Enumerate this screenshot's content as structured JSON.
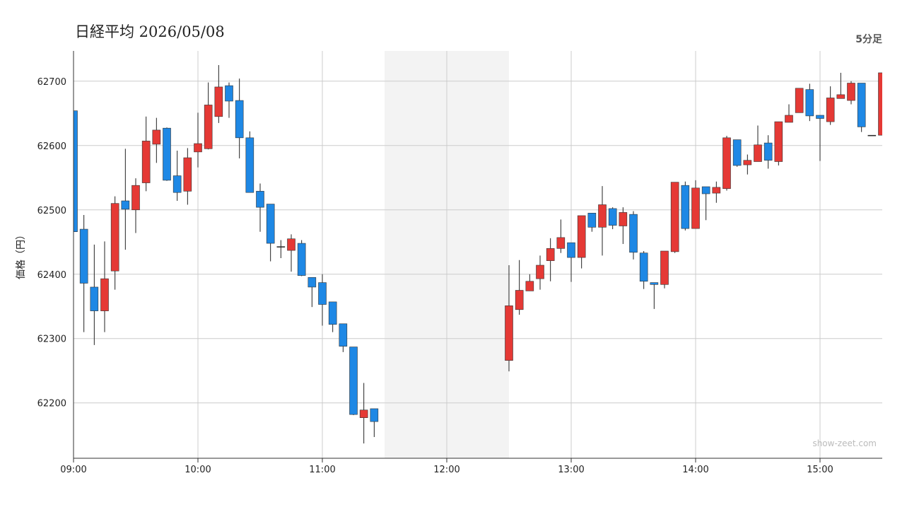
{
  "chart_data": {
    "type": "candlestick",
    "title": "日経平均 2026/05/08",
    "interval": "5分足",
    "y_label": "価格（円）",
    "watermark": "show-zeet.com",
    "up_color": "#e53935",
    "down_color": "#1e88e5",
    "grid": true,
    "break": [
      "11:30",
      "12:30"
    ],
    "xlim": [
      "09:00",
      "15:30"
    ],
    "xticks": [
      "09:00",
      "10:00",
      "11:00",
      "12:00",
      "13:00",
      "14:00",
      "15:00"
    ],
    "ylim": [
      62114,
      62747
    ],
    "yticks": [
      62200,
      62300,
      62400,
      62500,
      62600,
      62700
    ],
    "x": [
      "09:00",
      "09:05",
      "09:10",
      "09:15",
      "09:20",
      "09:25",
      "09:30",
      "09:35",
      "09:40",
      "09:45",
      "09:50",
      "09:55",
      "10:00",
      "10:05",
      "10:10",
      "10:15",
      "10:20",
      "10:25",
      "10:30",
      "10:35",
      "10:40",
      "10:45",
      "10:50",
      "10:55",
      "11:00",
      "11:05",
      "11:10",
      "11:15",
      "11:20",
      "11:25",
      "12:30",
      "12:35",
      "12:40",
      "12:45",
      "12:50",
      "12:55",
      "13:00",
      "13:05",
      "13:10",
      "13:15",
      "13:20",
      "13:25",
      "13:30",
      "13:35",
      "13:40",
      "13:45",
      "13:50",
      "13:55",
      "14:00",
      "14:05",
      "14:10",
      "14:15",
      "14:20",
      "14:25",
      "14:30",
      "14:35",
      "14:40",
      "14:45",
      "14:50",
      "14:55",
      "15:00",
      "15:05",
      "15:10",
      "15:15",
      "15:20",
      "15:25",
      "15:30"
    ],
    "open": [
      62654,
      62470,
      62380,
      62343,
      62405,
      62514,
      62500,
      62542,
      62602,
      62627,
      62553,
      62529,
      62590,
      62595,
      62645,
      62693,
      62670,
      62612,
      62529,
      62509,
      62443,
      62437,
      62448,
      62395,
      62387,
      62357,
      62323,
      62287,
      62177,
      62191,
      62266,
      62345,
      62374,
      62393,
      62421,
      62440,
      62449,
      62426,
      62495,
      62473,
      62502,
      62475,
      62493,
      62433,
      62387,
      62384,
      62435,
      62538,
      62471,
      62536,
      62526,
      62533,
      62609,
      62570,
      62575,
      62604,
      62575,
      62636,
      62651,
      62687,
      62647,
      62637,
      62673,
      62670,
      62697,
      62616,
      62616
    ],
    "high": [
      62654,
      62492,
      62446,
      62451,
      62521,
      62595,
      62549,
      62645,
      62643,
      62628,
      62592,
      62596,
      62651,
      62698,
      62725,
      62698,
      62704,
      62622,
      62541,
      62509,
      62453,
      62462,
      62453,
      62395,
      62400,
      62357,
      62323,
      62287,
      62231,
      62191,
      62414,
      62422,
      62400,
      62429,
      62456,
      62485,
      62449,
      62491,
      62495,
      62537,
      62504,
      62504,
      62498,
      62436,
      62387,
      62436,
      62543,
      62544,
      62546,
      62536,
      62544,
      62615,
      62609,
      62586,
      62631,
      62616,
      62637,
      62664,
      62689,
      62696,
      62647,
      62692,
      62713,
      62700,
      62697,
      62616,
      62713
    ],
    "low": [
      62466,
      62310,
      62290,
      62310,
      62376,
      62438,
      62464,
      62529,
      62573,
      62545,
      62514,
      62508,
      62566,
      62594,
      62635,
      62643,
      62580,
      62527,
      62466,
      62420,
      62425,
      62404,
      62397,
      62349,
      62320,
      62310,
      62279,
      62181,
      62137,
      62147,
      62249,
      62337,
      62374,
      62376,
      62389,
      62433,
      62388,
      62409,
      62466,
      62429,
      62470,
      62447,
      62423,
      62377,
      62346,
      62378,
      62433,
      62468,
      62471,
      62484,
      62511,
      62530,
      62567,
      62555,
      62575,
      62564,
      62569,
      62636,
      62651,
      62638,
      62576,
      62632,
      62673,
      62664,
      62621,
      62616,
      62616
    ],
    "close": [
      62466,
      62386,
      62343,
      62393,
      62510,
      62501,
      62538,
      62607,
      62624,
      62546,
      62527,
      62581,
      62603,
      62663,
      62691,
      62669,
      62612,
      62527,
      62504,
      62448,
      62443,
      62455,
      62398,
      62380,
      62353,
      62322,
      62288,
      62182,
      62189,
      62171,
      62351,
      62375,
      62389,
      62414,
      62440,
      62457,
      62426,
      62491,
      62473,
      62508,
      62476,
      62496,
      62434,
      62389,
      62384,
      62436,
      62543,
      62471,
      62534,
      62525,
      62535,
      62612,
      62569,
      62577,
      62601,
      62577,
      62637,
      62647,
      62689,
      62646,
      62642,
      62674,
      62679,
      62697,
      62629,
      62616,
      62713
    ]
  }
}
